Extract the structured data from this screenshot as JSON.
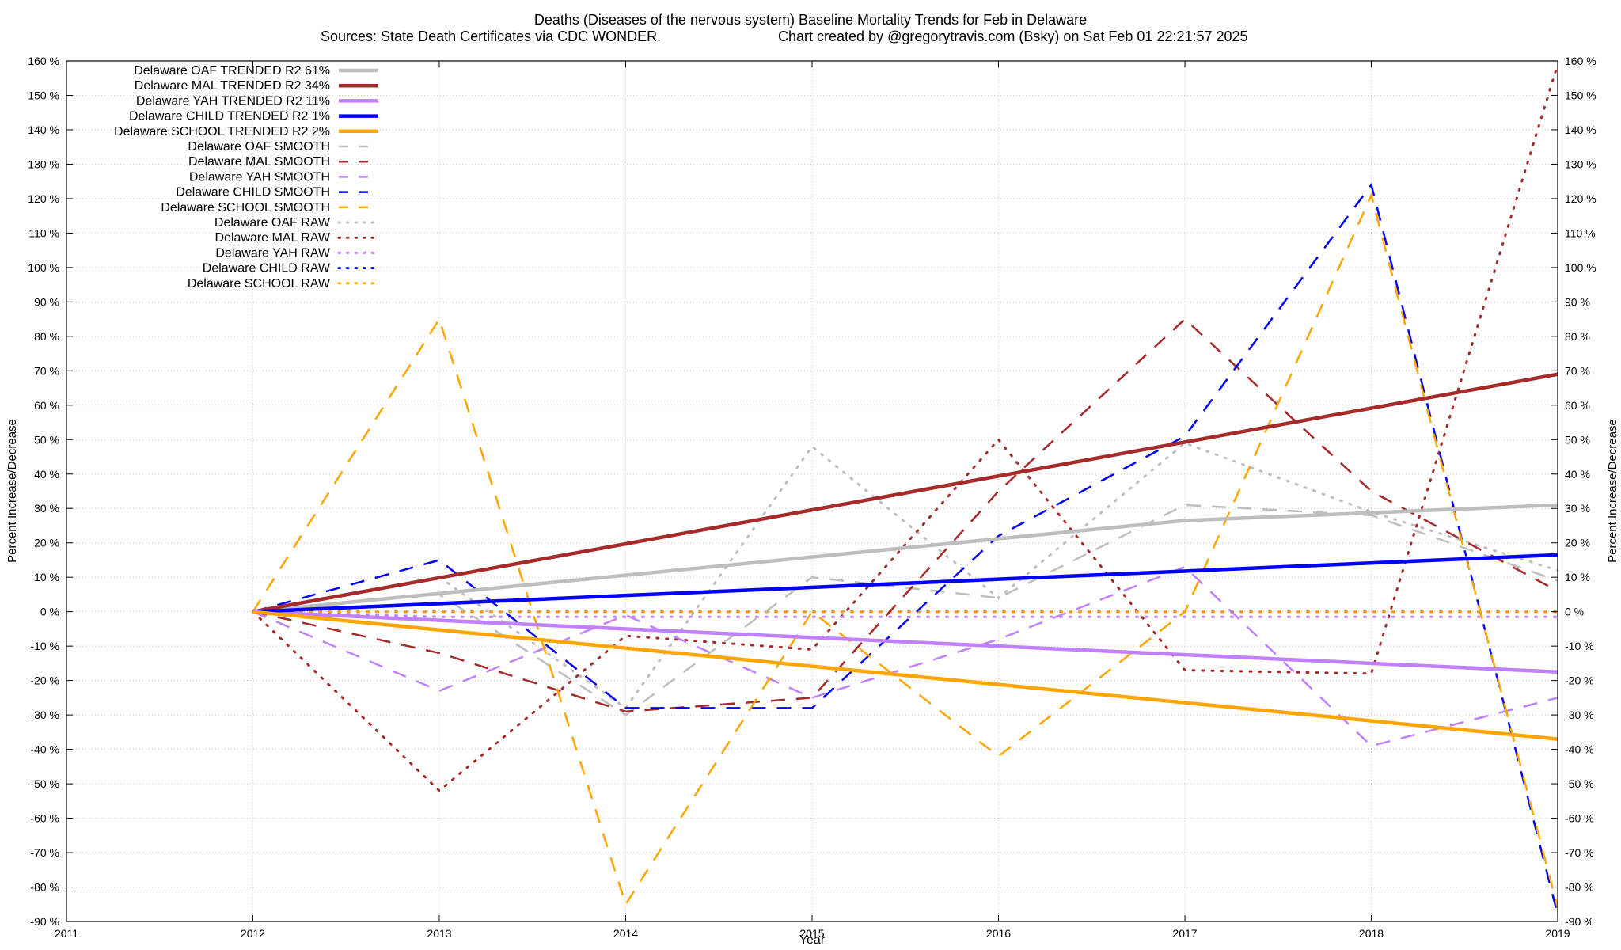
{
  "chart_data": {
    "type": "line",
    "title": "Deaths (Diseases of the nervous system)  Baseline Mortality Trends for Feb in Delaware",
    "subtitle_left": "Sources: State Death Certificates via CDC WONDER.",
    "subtitle_right": "Chart created by @gregorytravis.com (Bsky) on Sat Feb 01 22:21:57 2025",
    "xlabel": "Year",
    "ylabel_left": "Percent Increase/Decrease",
    "ylabel_right": "Percent Increase/Decrease",
    "xlim": [
      2011,
      2019
    ],
    "ylim": [
      -90,
      160
    ],
    "x_ticks": [
      "2011",
      "2012",
      "2013",
      "2014",
      "2015",
      "2016",
      "2017",
      "2018",
      "2019"
    ],
    "y_ticks": [
      "160 %",
      "150 %",
      "140 %",
      "130 %",
      "120 %",
      "110 %",
      "100 %",
      "90 %",
      "80 %",
      "70 %",
      "60 %",
      "50 %",
      "40 %",
      "30 %",
      "20 %",
      "10 %",
      "0 %",
      "-10 %",
      "-20 %",
      "-30 %",
      "-40 %",
      "-50 %",
      "-60 %",
      "-70 %",
      "-80 %",
      "-90 %"
    ],
    "grid": true,
    "legend_position": "top-left",
    "colors": {
      "oaf": "#bebebe",
      "mal": "#a52a2a",
      "yah": "#c080ff",
      "child": "#0000ff",
      "school": "#ffa500"
    },
    "series": [
      {
        "name": "Delaware OAF TRENDED R2  61%",
        "style": "solid",
        "color": "#bebebe",
        "x": [
          2012,
          2017,
          2019
        ],
        "y": [
          0,
          26.5,
          31
        ]
      },
      {
        "name": "Delaware MAL TRENDED R2  34%",
        "style": "solid",
        "color": "#a52a2a",
        "x": [
          2012,
          2019
        ],
        "y": [
          0,
          69
        ]
      },
      {
        "name": "Delaware YAH TRENDED R2  11%",
        "style": "solid",
        "color": "#c080ff",
        "x": [
          2012,
          2019
        ],
        "y": [
          0,
          -17.5
        ]
      },
      {
        "name": "Delaware CHILD TRENDED R2   1%",
        "style": "solid",
        "color": "#0000ff",
        "x": [
          2012,
          2019
        ],
        "y": [
          0,
          16.5
        ]
      },
      {
        "name": "Delaware SCHOOL TRENDED R2   2%",
        "style": "solid",
        "color": "#ffa500",
        "x": [
          2012,
          2019
        ],
        "y": [
          0,
          -37
        ]
      },
      {
        "name": "Delaware OAF SMOOTH",
        "style": "dashed",
        "color": "#bebebe",
        "x": [
          2012,
          2013,
          2014,
          2015,
          2016,
          2017,
          2018,
          2019
        ],
        "y": [
          0,
          5,
          -30,
          10,
          4,
          31,
          28,
          9
        ]
      },
      {
        "name": "Delaware MAL SMOOTH",
        "style": "dashed",
        "color": "#a52a2a",
        "x": [
          2012,
          2013,
          2014,
          2015,
          2016,
          2017,
          2018,
          2019
        ],
        "y": [
          0,
          -12,
          -29,
          -25,
          35,
          85,
          35,
          6
        ]
      },
      {
        "name": "Delaware YAH SMOOTH",
        "style": "dashed",
        "color": "#c080ff",
        "x": [
          2012,
          2013,
          2014,
          2015,
          2016,
          2017,
          2018,
          2019
        ],
        "y": [
          0,
          -23,
          -1,
          -25,
          -8,
          13,
          -39,
          -25
        ]
      },
      {
        "name": "Delaware CHILD SMOOTH",
        "style": "dashed",
        "color": "#0000ff",
        "x": [
          2012,
          2013,
          2014,
          2015,
          2016,
          2017,
          2018,
          2019
        ],
        "y": [
          0,
          15,
          -28,
          -28,
          22,
          51,
          124,
          -88
        ]
      },
      {
        "name": "Delaware SCHOOL SMOOTH",
        "style": "dashed",
        "color": "#ffa500",
        "x": [
          2012,
          2013,
          2014,
          2015,
          2016,
          2017,
          2018,
          2019
        ],
        "y": [
          0,
          85,
          -85,
          0,
          -42,
          0,
          121,
          -86
        ]
      },
      {
        "name": "Delaware OAF RAW",
        "style": "dotted",
        "color": "#bebebe",
        "x": [
          2012,
          2013,
          2014,
          2015,
          2016,
          2017,
          2018,
          2019
        ],
        "y": [
          0,
          10,
          -28,
          48,
          4,
          49,
          29,
          12
        ]
      },
      {
        "name": "Delaware MAL RAW",
        "style": "dotted",
        "color": "#a52a2a",
        "x": [
          2012,
          2013,
          2014,
          2015,
          2016,
          2017,
          2018,
          2019
        ],
        "y": [
          0,
          -52,
          -7,
          -11,
          50,
          -17,
          -18,
          159
        ]
      },
      {
        "name": "Delaware YAH RAW",
        "style": "dotted",
        "color": "#c080ff",
        "x": [
          2012,
          2013,
          2014,
          2015,
          2016,
          2017,
          2018,
          2019
        ],
        "y": [
          0,
          -1.5,
          -1.5,
          -1.5,
          -1.5,
          -1.5,
          -1.5,
          -1.5
        ]
      },
      {
        "name": "Delaware CHILD RAW",
        "style": "dotted",
        "color": "#0000ff",
        "x": [
          2012,
          2013,
          2014,
          2015,
          2016,
          2017,
          2018,
          2019
        ],
        "y": [
          0,
          0,
          0,
          0,
          0,
          0,
          0,
          0
        ]
      },
      {
        "name": "Delaware SCHOOL RAW",
        "style": "dotted",
        "color": "#ffa500",
        "x": [
          2012,
          2013,
          2014,
          2015,
          2016,
          2017,
          2018,
          2019
        ],
        "y": [
          0,
          0,
          0,
          0,
          0,
          0,
          0,
          0
        ]
      }
    ]
  }
}
